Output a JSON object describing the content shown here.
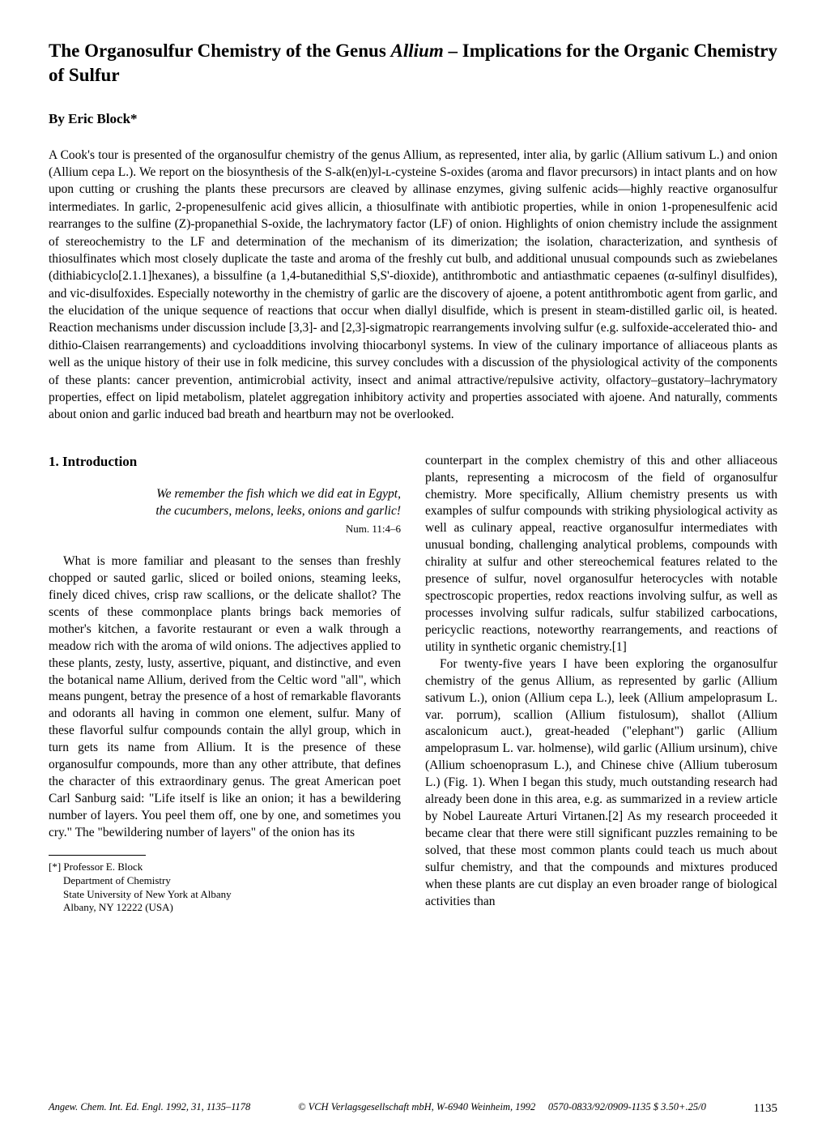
{
  "title_a": "The Organosulfur Chemistry of the Genus ",
  "title_italic": "Allium",
  "title_b": " – Implications for the Organic Chemistry of Sulfur",
  "byline": "By Eric Block*",
  "abstract": "A Cook's tour is presented of the organosulfur chemistry of the genus Allium, as represented, inter alia, by garlic (Allium sativum L.) and onion (Allium cepa L.). We report on the biosynthesis of the S-alk(en)yl-ʟ-cysteine S-oxides (aroma and flavor precursors) in intact plants and on how upon cutting or crushing the plants these precursors are cleaved by allinase enzymes, giving sulfenic acids—highly reactive organosulfur intermediates. In garlic, 2-propenesulfenic acid gives allicin, a thiosulfinate with antibiotic properties, while in onion 1-propenesulfenic acid rearranges to the sulfine (Z)-propanethial S-oxide, the lachrymatory factor (LF) of onion. Highlights of onion chemistry include the assignment of stereochemistry to the LF and determination of the mechanism of its dimerization; the isolation, characterization, and synthesis of thiosulfinates which most closely duplicate the taste and aroma of the freshly cut bulb, and additional unusual compounds such as zwiebelanes (dithiabicyclo[2.1.1]hexanes), a bissulfine (a 1,4-butanedithial S,S'-dioxide), antithrombotic and antiasthmatic cepaenes (α-sulfinyl disulfides), and vic-disulfoxides. Especially noteworthy in the chemistry of garlic are the discovery of ajoene, a potent antithrombotic agent from garlic, and the elucidation of the unique sequence of reactions that occur when diallyl disulfide, which is present in steam-distilled garlic oil, is heated. Reaction mechanisms under discussion include [3,3]- and [2,3]-sigmatropic rearrangements involving sulfur (e.g. sulfoxide-accelerated thio- and dithio-Claisen rearrangements) and cycloadditions involving thiocarbonyl systems. In view of the culinary importance of alliaceous plants as well as the unique history of their use in folk medicine, this survey concludes with a discussion of the physiological activity of the components of these plants: cancer prevention, antimicrobial activity, insect and animal attractive/repulsive activity, olfactory–gustatory–lachrymatory properties, effect on lipid metabolism, platelet aggregation inhibitory activity and properties associated with ajoene. And naturally, comments about onion and garlic induced bad breath and heartburn may not be overlooked.",
  "section_heading": "1. Introduction",
  "epigraph_line1": "We remember the fish which we did eat in Egypt,",
  "epigraph_line2": "the cucumbers, melons, leeks, onions and garlic!",
  "epigraph_ref": "Num. 11:4–6",
  "col1_p1": "What is more familiar and pleasant to the senses than freshly chopped or sauted garlic, sliced or boiled onions, steaming leeks, finely diced chives, crisp raw scallions, or the delicate shallot? The scents of these commonplace plants brings back memories of mother's kitchen, a favorite restaurant or even a walk through a meadow rich with the aroma of wild onions. The adjectives applied to these plants, zesty, lusty, assertive, piquant, and distinctive, and even the botanical name Allium, derived from the Celtic word \"all\", which means pungent, betray the presence of a host of remarkable flavorants and odorants all having in common one element, sulfur. Many of these flavorful sulfur compounds contain the allyl group, which in turn gets its name from Allium. It is the presence of these organosulfur compounds, more than any other attribute, that defines the character of this extraordinary genus. The great American poet Carl Sanburg said: \"Life itself is like an onion; it has a bewildering number of layers. You peel them off, one by one, and sometimes you cry.\" The \"bewildering number of layers\" of the onion has its",
  "footnote_marker": "[*]",
  "footnote_l1": "Professor E. Block",
  "footnote_l2": "Department of Chemistry",
  "footnote_l3": "State University of New York at Albany",
  "footnote_l4": "Albany, NY 12222 (USA)",
  "col2_p1": "counterpart in the complex chemistry of this and other alliaceous plants, representing a microcosm of the field of organosulfur chemistry. More specifically, Allium chemistry presents us with examples of sulfur compounds with striking physiological activity as well as culinary appeal, reactive organosulfur intermediates with unusual bonding, challenging analytical problems, compounds with chirality at sulfur and other stereochemical features related to the presence of sulfur, novel organosulfur heterocycles with notable spectroscopic properties, redox reactions involving sulfur, as well as processes involving sulfur radicals, sulfur stabilized carbocations, pericyclic reactions, noteworthy rearrangements, and reactions of utility in synthetic organic chemistry.[1]",
  "col2_p2": "For twenty-five years I have been exploring the organosulfur chemistry of the genus Allium, as represented by garlic (Allium sativum L.), onion (Allium cepa L.), leek (Allium ampeloprasum L. var. porrum), scallion (Allium fistulosum), shallot (Allium ascalonicum auct.), great-headed (\"elephant\") garlic (Allium ampeloprasum L. var. holmense), wild garlic (Allium ursinum), chive (Allium schoenoprasum L.), and Chinese chive (Allium tuberosum L.) (Fig. 1). When I began this study, much outstanding research had already been done in this area, e.g. as summarized in a review article by Nobel Laureate Arturi Virtanen.[2] As my research proceeded it became clear that there were still significant puzzles remaining to be solved, that these most common plants could teach us much about sulfur chemistry, and that the compounds and mixtures produced when these plants are cut display an even broader range of biological activities than",
  "footer_left": "Angew. Chem. Int. Ed. Engl. 1992, 31, 1135–1178",
  "footer_center": "© VCH Verlagsgesellschaft mbH, W-6940 Weinheim, 1992",
  "footer_right": "0570-0833/92/0909-1135 $ 3.50+.25/0",
  "pageno": "1135"
}
